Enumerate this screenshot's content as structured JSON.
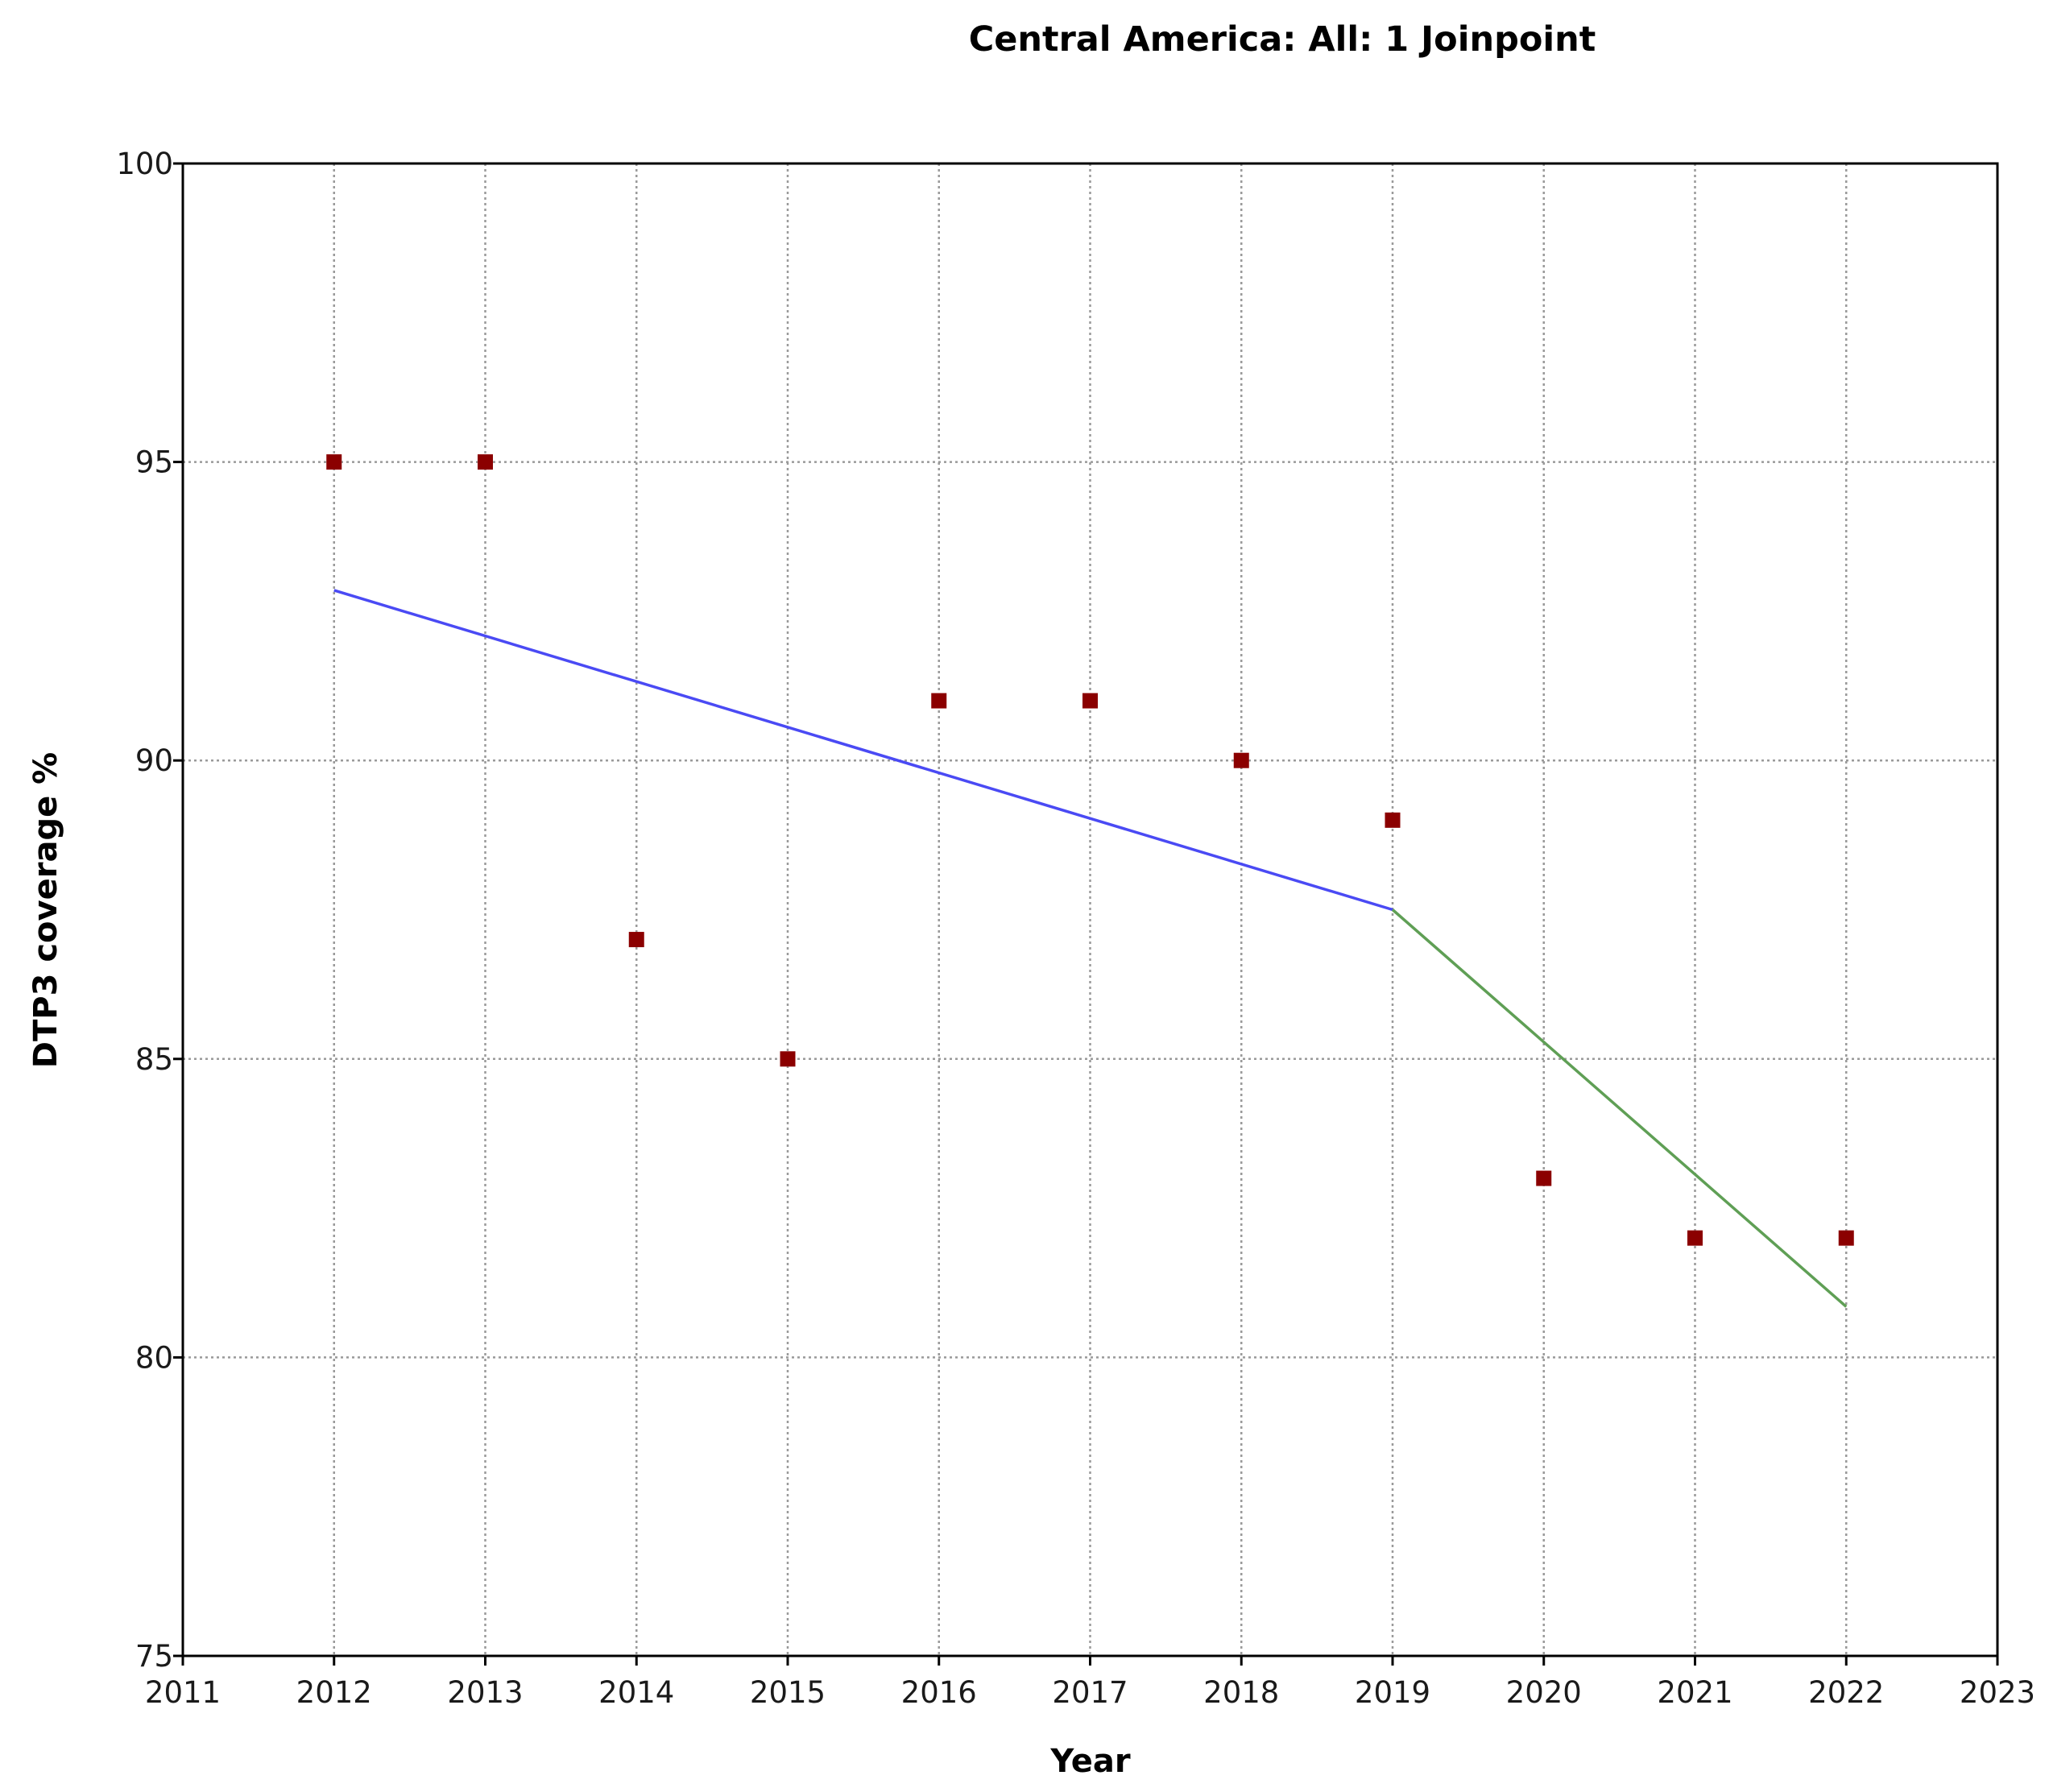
{
  "chart_data": {
    "type": "scatter",
    "title": "Central America: All: 1 Joinpoint",
    "xlabel": "Year",
    "ylabel": "DTP3 coverage %",
    "xlim": [
      2011,
      2023
    ],
    "ylim": [
      75,
      100
    ],
    "x_ticks": [
      2011,
      2012,
      2013,
      2014,
      2015,
      2016,
      2017,
      2018,
      2019,
      2020,
      2021,
      2022,
      2023
    ],
    "y_ticks": [
      75,
      80,
      85,
      90,
      95,
      100
    ],
    "grid": true,
    "points": {
      "color": "#8b0000",
      "x": [
        2012,
        2013,
        2014,
        2015,
        2016,
        2017,
        2018,
        2019,
        2020,
        2021,
        2022
      ],
      "y": [
        95,
        95,
        87,
        85,
        91,
        91,
        90,
        89,
        83,
        82,
        82
      ]
    },
    "segments": [
      {
        "color": "#4a4af4",
        "x": [
          2012,
          2019
        ],
        "y": [
          92.85,
          87.5
        ]
      },
      {
        "color": "#5f9f55",
        "x": [
          2019,
          2022
        ],
        "y": [
          87.5,
          80.85
        ]
      }
    ]
  }
}
